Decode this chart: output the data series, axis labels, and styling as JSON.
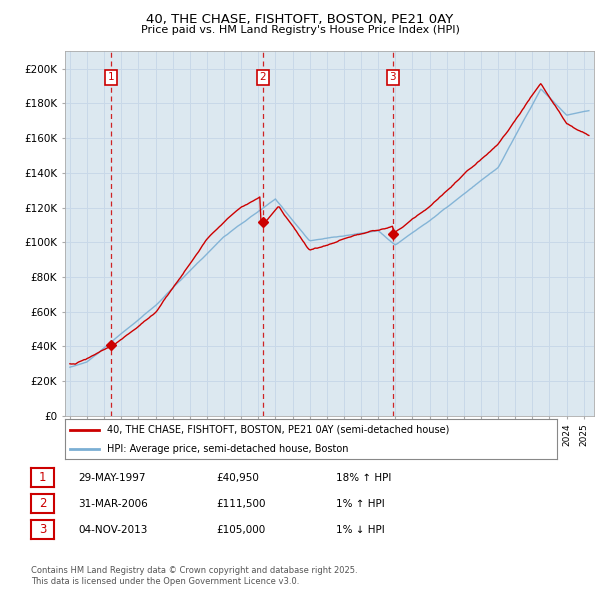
{
  "title": "40, THE CHASE, FISHTOFT, BOSTON, PE21 0AY",
  "subtitle": "Price paid vs. HM Land Registry's House Price Index (HPI)",
  "legend_line1": "40, THE CHASE, FISHTOFT, BOSTON, PE21 0AY (semi-detached house)",
  "legend_line2": "HPI: Average price, semi-detached house, Boston",
  "footer": "Contains HM Land Registry data © Crown copyright and database right 2025.\nThis data is licensed under the Open Government Licence v3.0.",
  "sale_color": "#cc0000",
  "hpi_color": "#7bafd4",
  "vline_color": "#cc0000",
  "grid_color": "#c8d8e8",
  "plot_bg": "#dce8f0",
  "bg_color": "#ffffff",
  "ylim": [
    0,
    210000
  ],
  "yticks": [
    0,
    20000,
    40000,
    60000,
    80000,
    100000,
    120000,
    140000,
    160000,
    180000,
    200000
  ],
  "ytick_labels": [
    "£0",
    "£20K",
    "£40K",
    "£60K",
    "£80K",
    "£100K",
    "£120K",
    "£140K",
    "£160K",
    "£180K",
    "£200K"
  ],
  "sale_prices": [
    40950,
    111500,
    105000
  ],
  "sale_labels": [
    "1",
    "2",
    "3"
  ],
  "sale_year_floats": [
    1997.41,
    2006.25,
    2013.84
  ],
  "table_rows": [
    [
      "1",
      "29-MAY-1997",
      "£40,950",
      "18% ↑ HPI"
    ],
    [
      "2",
      "31-MAR-2006",
      "£111,500",
      "1% ↑ HPI"
    ],
    [
      "3",
      "04-NOV-2013",
      "£105,000",
      "1% ↓ HPI"
    ]
  ]
}
